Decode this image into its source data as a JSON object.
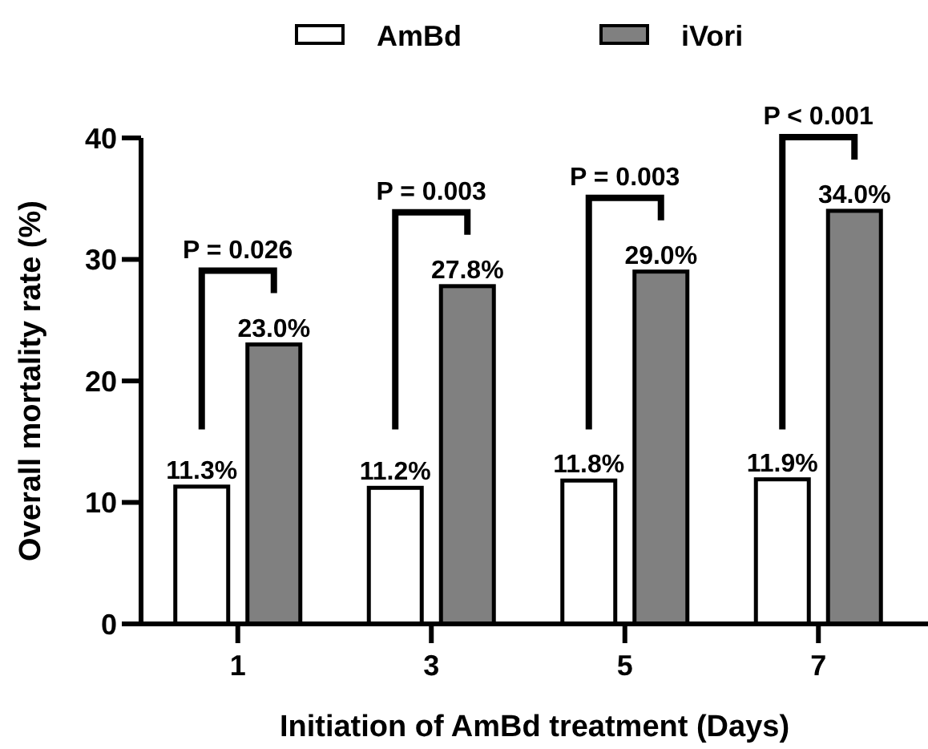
{
  "chart_data": {
    "type": "bar",
    "xlabel": "Initiation of AmBd treatment (Days)",
    "ylabel": "Overall mortality rate (%)",
    "categories": [
      "1",
      "3",
      "5",
      "7"
    ],
    "series": [
      {
        "name": "AmBd",
        "color": "#ffffff",
        "values": [
          11.3,
          11.2,
          11.8,
          11.9
        ],
        "value_labels": [
          "11.3%",
          "11.2%",
          "11.8%",
          "11.9%"
        ]
      },
      {
        "name": "iVori",
        "color": "#808080",
        "values": [
          23.0,
          27.8,
          29.0,
          34.0
        ],
        "value_labels": [
          "23.0%",
          "27.8%",
          "29.0%",
          "34.0%"
        ]
      }
    ],
    "annotations": [
      "P = 0.026",
      "P = 0.003",
      "P = 0.003",
      "P < 0.001"
    ],
    "ylim": [
      0,
      40
    ],
    "yticks": [
      0,
      10,
      20,
      30,
      40
    ],
    "grid": false,
    "legend": "top"
  }
}
